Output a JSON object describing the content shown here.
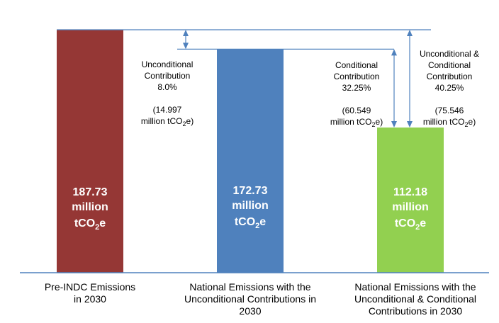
{
  "chart_data": {
    "type": "bar",
    "categories": [
      [
        "Pre-INDC Emissions",
        "in 2030"
      ],
      [
        "National Emissions with the",
        "Unconditional Contributions in",
        "2030"
      ],
      [
        "National Emissions with the",
        "Unconditional & Conditional",
        "Contributions  in 2030"
      ]
    ],
    "values": [
      187.73,
      172.73,
      112.18
    ],
    "bar_labels": [
      {
        "value": "187.73",
        "unit_line": "million",
        "co2_prefix": "tCO",
        "co2_sub": "2",
        "co2_suffix": "e"
      },
      {
        "value": "172.73",
        "unit_line": "million",
        "co2_prefix": "tCO",
        "co2_sub": "2",
        "co2_suffix": "e"
      },
      {
        "value": "112.18",
        "unit_line": "million",
        "co2_prefix": "tCO",
        "co2_sub": "2",
        "co2_suffix": "e"
      }
    ],
    "colors": [
      "#953735",
      "#4F81BD",
      "#92D050"
    ],
    "axis_color": "#4F81BD",
    "annotations": [
      {
        "lines": [
          "Unconditional",
          "Contribution",
          "8.0%"
        ],
        "amount_line1": "(14.997",
        "amount_pre": "million tCO",
        "amount_sub": "2",
        "amount_post": "e)",
        "from": 187.73,
        "to": 172.73
      },
      {
        "lines": [
          "Conditional",
          "Contribution",
          "32.25%"
        ],
        "amount_line1": "(60.549",
        "amount_pre": "million tCO",
        "amount_sub": "2",
        "amount_post": "e)",
        "from": 172.73,
        "to": 112.18
      },
      {
        "lines": [
          "Unconditional &",
          "Conditional",
          "Contribution",
          "40.25%"
        ],
        "amount_line1": "(75.546",
        "amount_pre": "million tCO",
        "amount_sub": "2",
        "amount_post": "e)",
        "from": 187.73,
        "to": 112.18
      }
    ],
    "ylim": [
      0,
      187.73
    ],
    "title": "",
    "xlabel": "",
    "ylabel": "",
    "grid": false
  }
}
